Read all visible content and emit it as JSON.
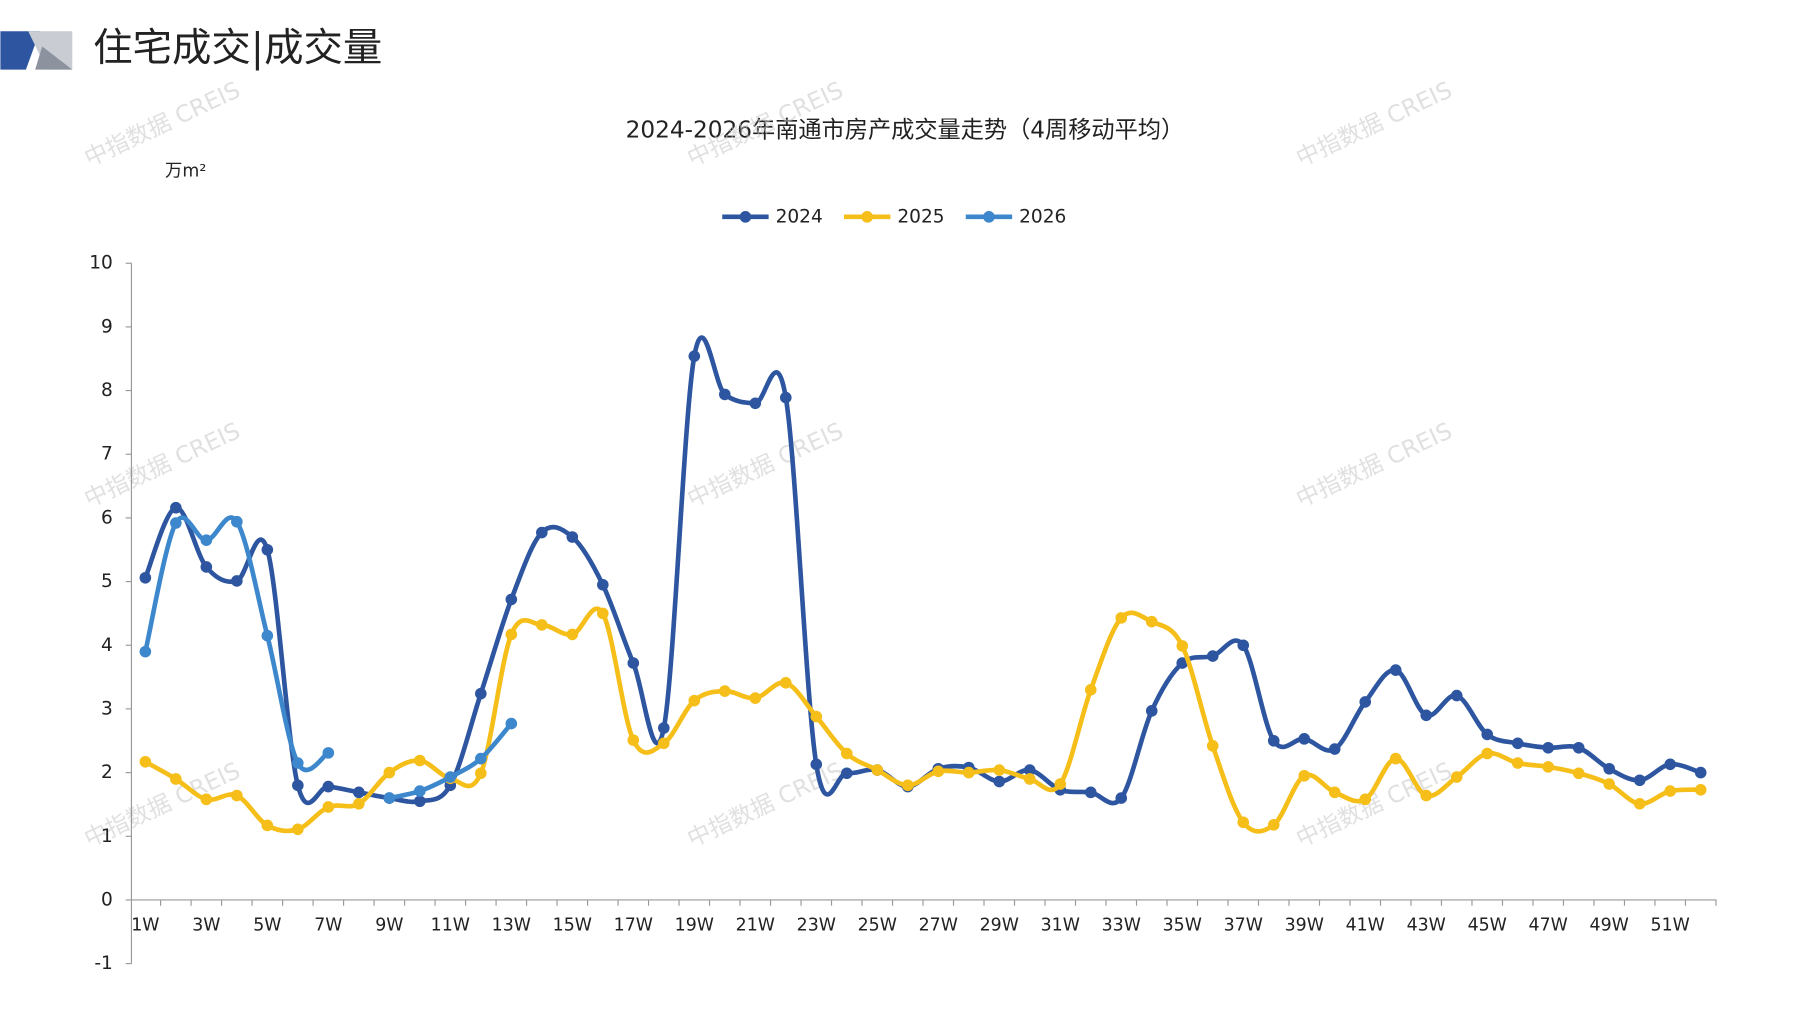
{
  "header": {
    "title": "住宅成交|成交量"
  },
  "watermark": "中指数据 CREIS",
  "chart_data": {
    "type": "line",
    "title": "2024-2026年南通市房产成交量走势（4周移动平均）",
    "y_label": "万m²",
    "categories": [
      "1W",
      null,
      "3W",
      null,
      "5W",
      null,
      "7W",
      null,
      "9W",
      null,
      "11W",
      null,
      "13W",
      null,
      "15W",
      null,
      "17W",
      null,
      "19W",
      null,
      "21W",
      null,
      "23W",
      null,
      "25W",
      null,
      "27W",
      null,
      "29W",
      null,
      "31W",
      null,
      "33W",
      null,
      "35W",
      null,
      "37W",
      null,
      "39W",
      null,
      "41W",
      null,
      "43W",
      null,
      "45W",
      null,
      "47W",
      null,
      "49W",
      null,
      "51W",
      null
    ],
    "series": [
      {
        "name": "2024",
        "color": "#2e56a0",
        "values": [
          5.06,
          6.16,
          5.23,
          5.01,
          5.5,
          1.8,
          1.78,
          1.69,
          1.6,
          1.55,
          1.8,
          3.24,
          4.72,
          5.77,
          5.7,
          4.95,
          3.72,
          2.7,
          8.54,
          7.94,
          7.8,
          7.89,
          2.13,
          1.99,
          2.04,
          1.78,
          2.06,
          2.08,
          1.86,
          2.04,
          1.73,
          1.69,
          1.6,
          2.97,
          3.72,
          3.83,
          4.0,
          2.5,
          2.53,
          2.37,
          3.11,
          3.61,
          2.9,
          3.21,
          2.6,
          2.46,
          2.39,
          2.39,
          2.06,
          1.88,
          2.13,
          2.0
        ]
      },
      {
        "name": "2025",
        "color": "#f5be19",
        "values": [
          2.17,
          1.9,
          1.58,
          1.64,
          1.17,
          1.11,
          1.46,
          1.51,
          2.0,
          2.19,
          1.91,
          1.99,
          4.17,
          4.32,
          4.17,
          4.5,
          2.51,
          2.46,
          3.13,
          3.28,
          3.17,
          3.41,
          2.88,
          2.3,
          2.04,
          1.8,
          2.02,
          2.0,
          2.04,
          1.9,
          1.82,
          3.3,
          4.43,
          4.37,
          3.99,
          2.42,
          1.22,
          1.18,
          1.95,
          1.69,
          1.58,
          2.22,
          1.64,
          1.93,
          2.3,
          2.15,
          2.09,
          1.99,
          1.82,
          1.51,
          1.71,
          1.73
        ]
      },
      {
        "name": "2026",
        "color": "#3d87cc",
        "values": [
          3.9,
          5.92,
          5.65,
          5.94,
          4.15,
          2.15,
          2.31,
          null,
          1.6,
          1.71,
          1.93,
          2.22,
          2.77,
          null,
          null,
          null,
          null,
          null,
          null,
          null,
          null,
          null,
          null,
          null,
          null,
          null,
          null,
          null,
          null,
          null,
          null,
          null,
          null,
          null,
          null,
          null,
          null,
          null,
          null,
          null,
          null,
          null,
          null,
          null,
          null,
          null,
          null,
          null,
          null,
          null,
          null,
          null
        ]
      }
    ],
    "ylim": [
      -1,
      10
    ],
    "yticks": [
      -1,
      0,
      1,
      2,
      3,
      4,
      5,
      6,
      7,
      8,
      9,
      10
    ],
    "legend": "top"
  }
}
